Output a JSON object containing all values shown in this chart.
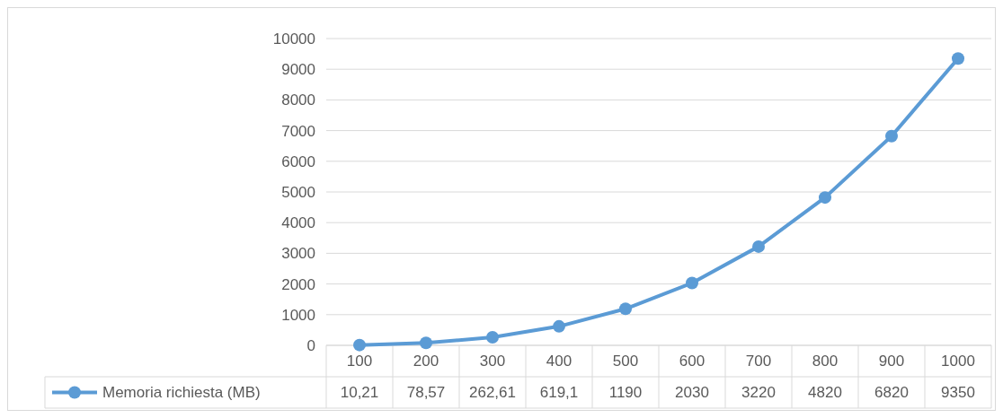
{
  "chart_data": {
    "type": "line",
    "categories": [
      "100",
      "200",
      "300",
      "400",
      "500",
      "600",
      "700",
      "800",
      "900",
      "1000"
    ],
    "series": [
      {
        "name": "Memoria richiesta (MB)",
        "color": "#5b9bd5",
        "values": [
          10.21,
          78.57,
          262.61,
          619.1,
          1190,
          2030,
          3220,
          4820,
          6820,
          9350
        ],
        "value_labels": [
          "10,21",
          "78,57",
          "262,61",
          "619,1",
          "1190",
          "2030",
          "3220",
          "4820",
          "6820",
          "9350"
        ]
      }
    ],
    "ylim": [
      0,
      10000
    ],
    "yticks": [
      0,
      1000,
      2000,
      3000,
      4000,
      5000,
      6000,
      7000,
      8000,
      9000,
      10000
    ],
    "grid": "y",
    "marker": "circle",
    "legend": "bottom"
  }
}
